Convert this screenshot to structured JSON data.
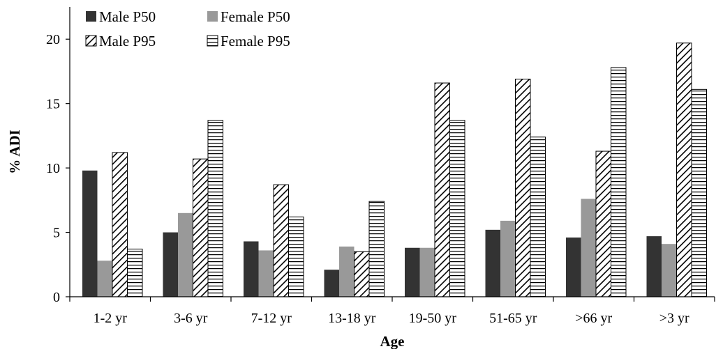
{
  "chart_data": {
    "type": "bar",
    "title": "",
    "xlabel": "Age",
    "ylabel": "% ADI",
    "ylim": [
      0,
      22.5
    ],
    "yticks": [
      0,
      5,
      10,
      15,
      20
    ],
    "grid": false,
    "legend_position": "top-left",
    "categories": [
      "1-2 yr",
      "3-6 yr",
      "7-12 yr",
      "13-18 yr",
      "19-50 yr",
      "51-65 yr",
      ">66 yr",
      ">3 yr"
    ],
    "series": [
      {
        "name": "Male P50",
        "pattern": "solid-dark",
        "color": "#333333",
        "values": [
          9.8,
          5.0,
          4.3,
          2.1,
          3.8,
          5.2,
          4.6,
          4.7
        ]
      },
      {
        "name": "Female P50",
        "pattern": "solid-gray",
        "color": "#999999",
        "values": [
          2.8,
          6.5,
          3.6,
          3.9,
          3.8,
          5.9,
          7.6,
          4.1
        ]
      },
      {
        "name": "Male P95",
        "pattern": "diagonal-hatch",
        "color": "#000000",
        "values": [
          11.2,
          10.7,
          8.7,
          3.5,
          16.6,
          16.9,
          11.3,
          19.7
        ]
      },
      {
        "name": "Female P95",
        "pattern": "horizontal-stripes",
        "color": "#000000",
        "values": [
          3.7,
          13.7,
          6.2,
          7.4,
          13.7,
          12.4,
          17.8,
          16.1
        ]
      }
    ]
  }
}
